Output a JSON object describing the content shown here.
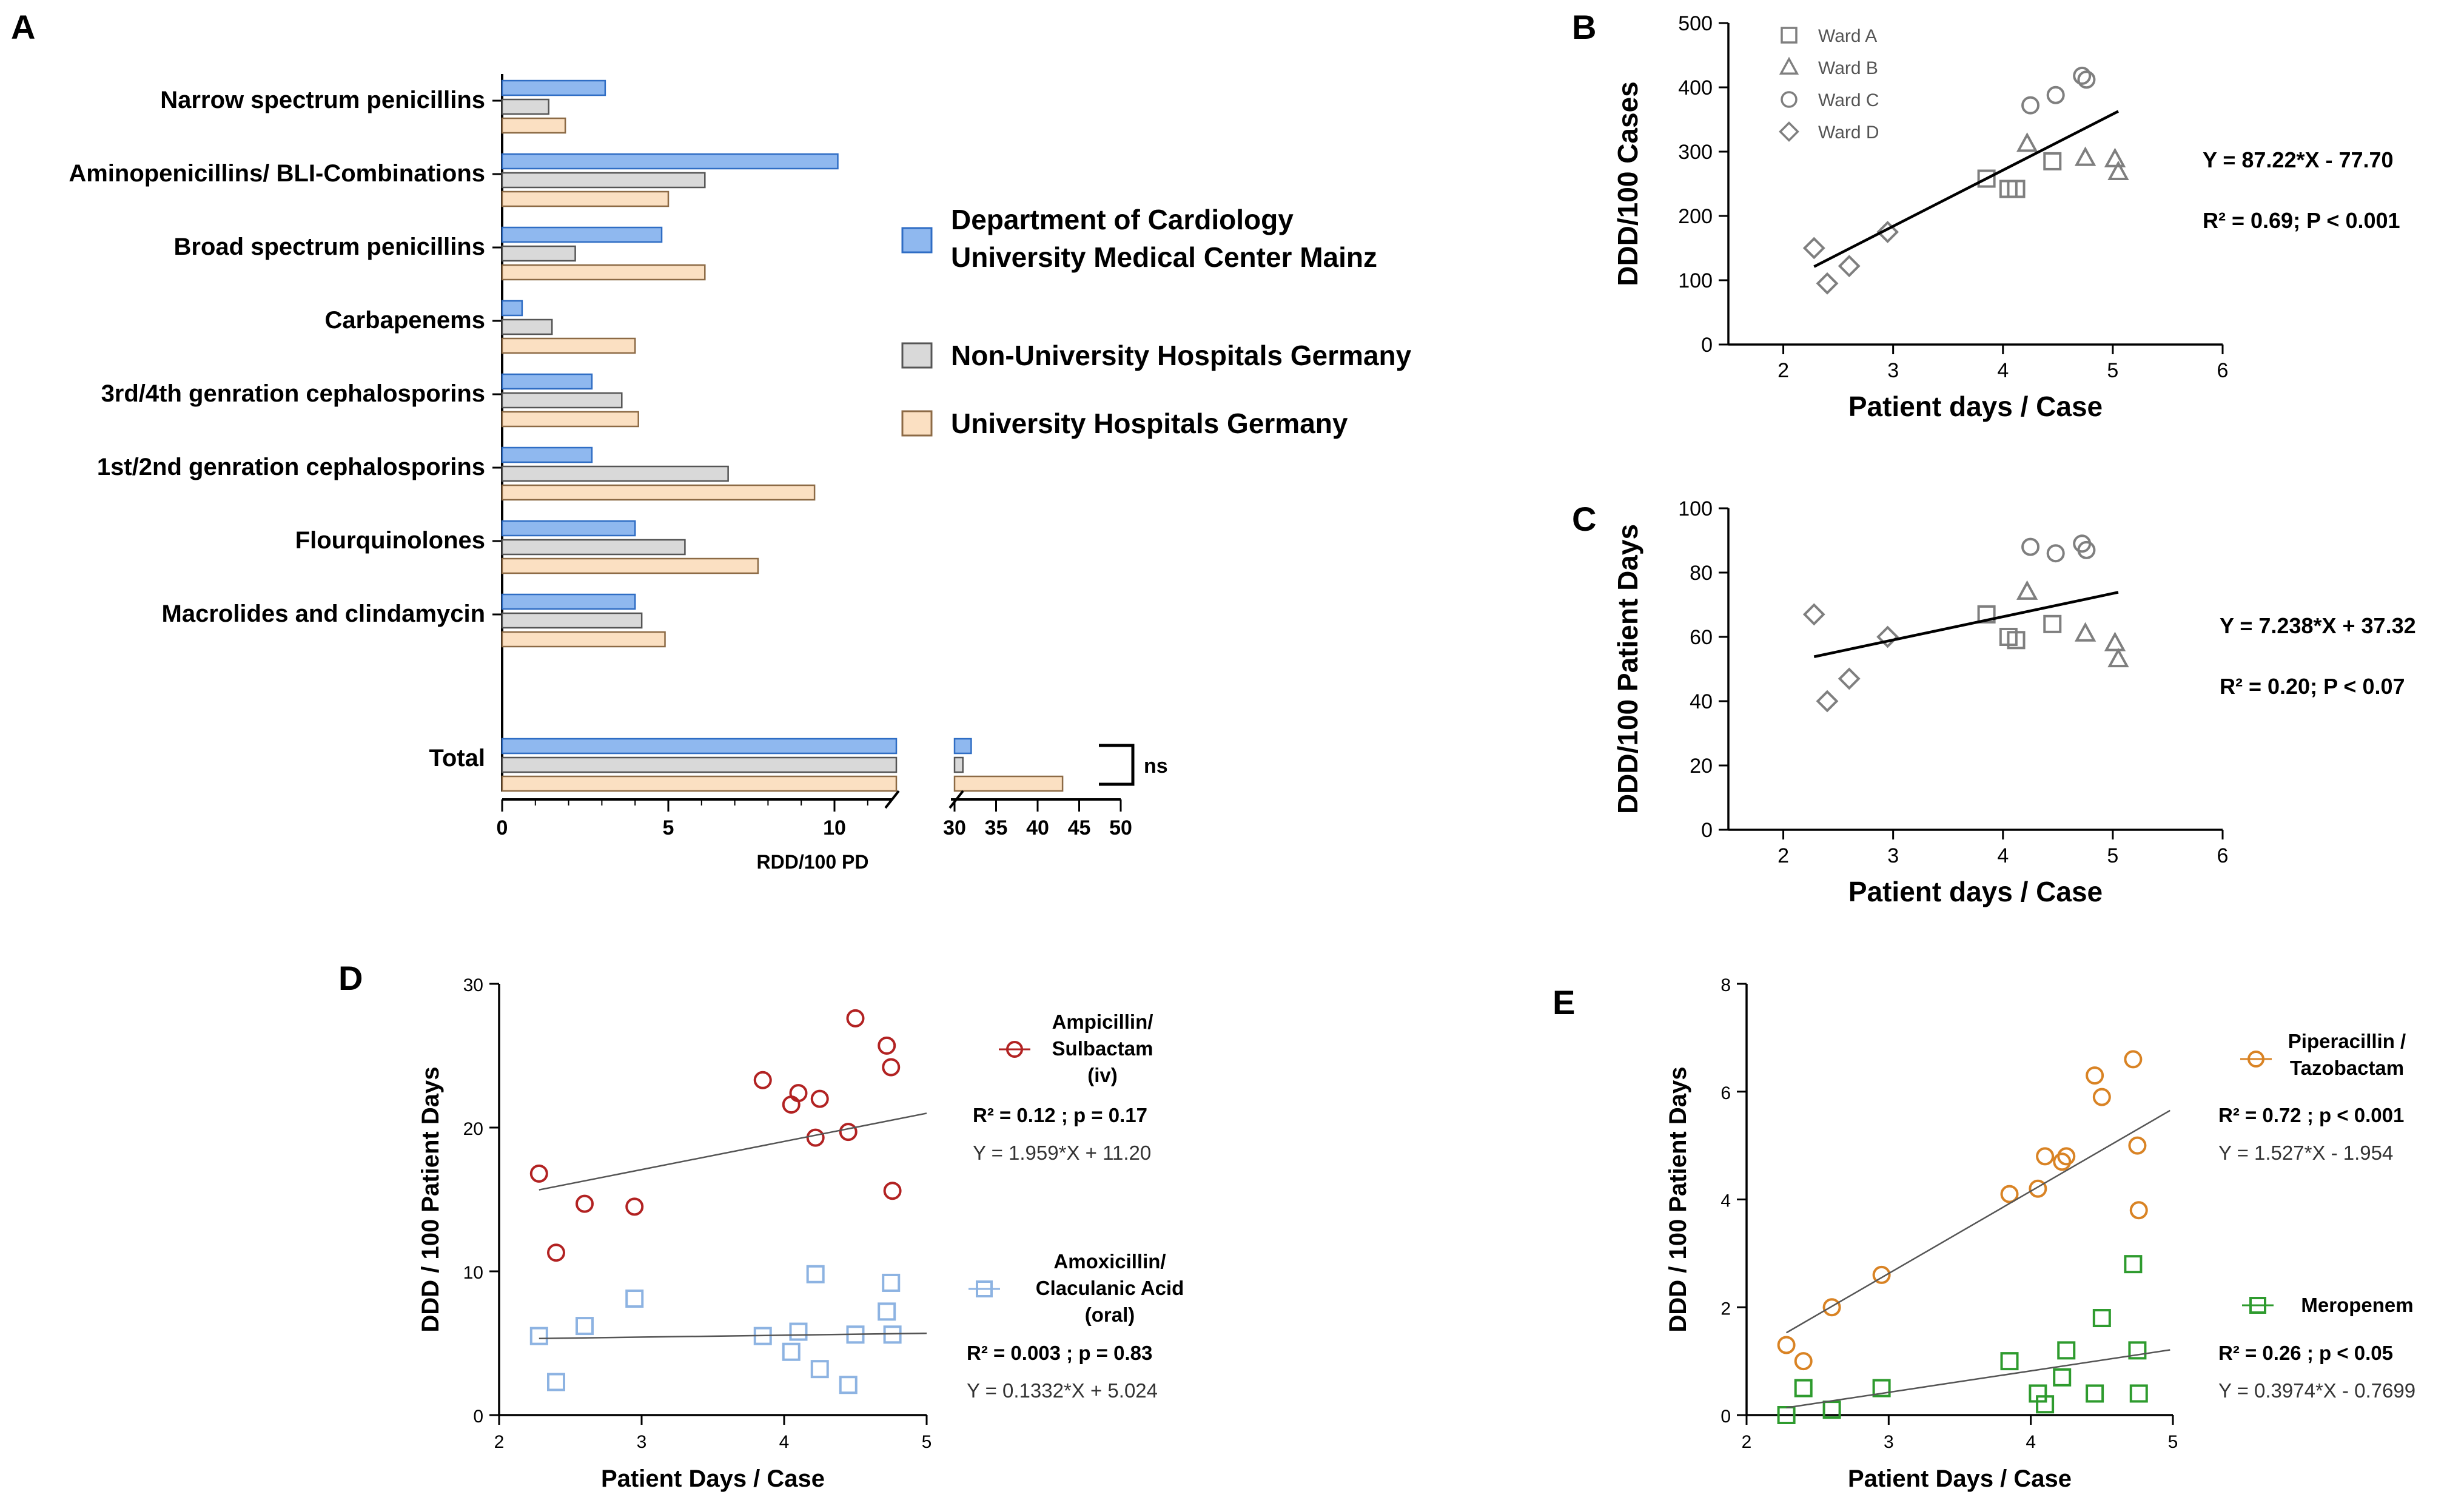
{
  "figure": {
    "panel_labels": [
      "A",
      "B",
      "C",
      "D",
      "E"
    ]
  },
  "colors": {
    "blue": "#8fb8ef",
    "blue_edge": "#2f6dc4",
    "grey": "#d9d9d9",
    "grey_edge": "#555555",
    "peach": "#fbe0c2",
    "peach_edge": "#8c6a45",
    "marker": "#7f7f7f",
    "red": "#b22222",
    "lightblue": "#8db3e2",
    "orange": "#d98324",
    "green": "#2e9b2e"
  },
  "chart_data": [
    {
      "id": "A",
      "type": "bar",
      "orientation": "horizontal",
      "categories": [
        "Narrow spectrum penicillins",
        "Aminopenicillins/ BLI-Combinations",
        "Broad spectrum penicillins",
        "Carbapenems",
        "3rd/4th genration cephalosporins",
        "1st/2nd genration cephalosporins",
        "Flourquinolones",
        "Macrolides and clindamycin"
      ],
      "series": [
        {
          "name": "Department of Cardiology University Medical Center Mainz",
          "legend_lines": [
            "Department of Cardiology",
            "University Medical Center Mainz"
          ],
          "color_key": "blue",
          "values": [
            3.1,
            10.1,
            4.8,
            0.6,
            2.7,
            2.7,
            4.0,
            4.0
          ]
        },
        {
          "name": "Non-University Hospitals Germany",
          "legend_lines": [
            "Non-University Hospitals Germany"
          ],
          "color_key": "grey",
          "values": [
            1.4,
            6.1,
            2.2,
            1.5,
            3.6,
            6.8,
            5.5,
            4.2
          ]
        },
        {
          "name": "University Hospitals Germany",
          "legend_lines": [
            "University Hospitals Germany"
          ],
          "color_key": "peach",
          "values": [
            1.9,
            5.0,
            6.1,
            4.0,
            4.1,
            9.4,
            7.7,
            4.9
          ]
        }
      ],
      "total": {
        "label": "Total",
        "values": [
          32,
          31,
          43
        ],
        "significance": "ns"
      },
      "xlabel": "RDD/100 PD",
      "xlim_left": [
        0,
        12
      ],
      "xticks_left": [
        0,
        5,
        10
      ],
      "xlim_right": [
        30,
        50
      ],
      "xticks_right": [
        30,
        35,
        40,
        45,
        50
      ]
    },
    {
      "id": "B",
      "type": "scatter",
      "xlabel": "Patient days / Case",
      "ylabel": "DDD/100 Cases",
      "xlim": [
        1.5,
        6
      ],
      "xticks": [
        2,
        3,
        4,
        5,
        6
      ],
      "ylim": [
        0,
        500
      ],
      "yticks": [
        0,
        100,
        200,
        300,
        400,
        500
      ],
      "series": [
        {
          "name": "Ward A",
          "marker": "square",
          "points": [
            [
              3.85,
              258
            ],
            [
              4.05,
              242
            ],
            [
              4.12,
              242
            ],
            [
              4.45,
              285
            ]
          ]
        },
        {
          "name": "Ward B",
          "marker": "triangle",
          "points": [
            [
              4.22,
              312
            ],
            [
              4.75,
              290
            ],
            [
              5.02,
              288
            ],
            [
              5.05,
              268
            ]
          ]
        },
        {
          "name": "Ward C",
          "marker": "circle",
          "points": [
            [
              4.25,
              372
            ],
            [
              4.48,
              388
            ],
            [
              4.72,
              418
            ],
            [
              4.76,
              412
            ]
          ]
        },
        {
          "name": "Ward D",
          "marker": "diamond",
          "points": [
            [
              2.28,
              150
            ],
            [
              2.4,
              95
            ],
            [
              2.6,
              122
            ],
            [
              2.95,
              175
            ]
          ]
        }
      ],
      "fit": {
        "slope": 87.22,
        "intercept": -77.7,
        "x_range": [
          2.28,
          5.05
        ]
      },
      "annotations": [
        "Y = 87.22*X - 77.70",
        "R² = 0.69; P < 0.001"
      ]
    },
    {
      "id": "C",
      "type": "scatter",
      "xlabel": "Patient days / Case",
      "ylabel": "DDD/100 Patient Days",
      "xlim": [
        1.5,
        6
      ],
      "xticks": [
        2,
        3,
        4,
        5,
        6
      ],
      "ylim": [
        0,
        100
      ],
      "yticks": [
        0,
        20,
        40,
        60,
        80,
        100
      ],
      "series": [
        {
          "name": "Ward A",
          "marker": "square",
          "points": [
            [
              3.85,
              67
            ],
            [
              4.05,
              60
            ],
            [
              4.12,
              59
            ],
            [
              4.45,
              64
            ]
          ]
        },
        {
          "name": "Ward B",
          "marker": "triangle",
          "points": [
            [
              4.22,
              74
            ],
            [
              4.75,
              61
            ],
            [
              5.02,
              58
            ],
            [
              5.05,
              53
            ]
          ]
        },
        {
          "name": "Ward C",
          "marker": "circle",
          "points": [
            [
              4.25,
              88
            ],
            [
              4.48,
              86
            ],
            [
              4.72,
              89
            ],
            [
              4.76,
              87
            ]
          ]
        },
        {
          "name": "Ward D",
          "marker": "diamond",
          "points": [
            [
              2.28,
              67
            ],
            [
              2.4,
              40
            ],
            [
              2.6,
              47
            ],
            [
              2.95,
              60
            ]
          ]
        }
      ],
      "fit": {
        "slope": 7.238,
        "intercept": 37.32,
        "x_range": [
          2.28,
          5.05
        ]
      },
      "annotations": [
        "Y = 7.238*X + 37.32",
        "R² = 0.20; P < 0.07"
      ]
    },
    {
      "id": "D",
      "type": "scatter",
      "xlabel": "Patient Days / Case",
      "ylabel": "DDD / 100 Patient Days",
      "xlim": [
        2,
        5
      ],
      "xticks": [
        2,
        3,
        4,
        5
      ],
      "ylim": [
        0,
        30
      ],
      "yticks": [
        0,
        10,
        20,
        30
      ],
      "series": [
        {
          "name": "Ampicillin/ Sulbactam (iv)",
          "legend_lines": [
            "Ampicillin/",
            "Sulbactam",
            "(iv)"
          ],
          "marker": "circle",
          "color_key": "red",
          "points": [
            [
              2.28,
              16.8
            ],
            [
              2.4,
              11.3
            ],
            [
              2.6,
              14.7
            ],
            [
              2.95,
              14.5
            ],
            [
              3.85,
              23.3
            ],
            [
              4.05,
              21.6
            ],
            [
              4.1,
              22.4
            ],
            [
              4.22,
              19.3
            ],
            [
              4.25,
              22.0
            ],
            [
              4.45,
              19.7
            ],
            [
              4.5,
              27.6
            ],
            [
              4.72,
              25.7
            ],
            [
              4.75,
              24.2
            ],
            [
              4.76,
              15.6
            ]
          ],
          "fit": {
            "slope": 1.959,
            "intercept": 11.2,
            "x_range": [
              2.28,
              5.0
            ]
          },
          "annotations": [
            "R² = 0.12 ; p = 0.17",
            "Y = 1.959*X + 11.20"
          ]
        },
        {
          "name": "Amoxicillin/ Claculanic Acid (oral)",
          "legend_lines": [
            "Amoxicillin/",
            "Claculanic Acid",
            "(oral)"
          ],
          "marker": "square",
          "color_key": "lightblue",
          "points": [
            [
              2.28,
              5.5
            ],
            [
              2.4,
              2.3
            ],
            [
              2.6,
              6.2
            ],
            [
              2.95,
              8.1
            ],
            [
              3.85,
              5.5
            ],
            [
              4.05,
              4.4
            ],
            [
              4.1,
              5.8
            ],
            [
              4.22,
              9.8
            ],
            [
              4.25,
              3.2
            ],
            [
              4.45,
              2.1
            ],
            [
              4.5,
              5.6
            ],
            [
              4.72,
              7.2
            ],
            [
              4.75,
              9.2
            ],
            [
              4.76,
              5.6
            ]
          ],
          "fit": {
            "slope": 0.1332,
            "intercept": 5.024,
            "x_range": [
              2.28,
              5.0
            ]
          },
          "annotations": [
            "R² = 0.003 ; p = 0.83",
            "Y = 0.1332*X + 5.024"
          ]
        }
      ]
    },
    {
      "id": "E",
      "type": "scatter",
      "xlabel": "Patient Days / Case",
      "ylabel": "DDD / 100 Patient Days",
      "xlim": [
        2,
        5
      ],
      "xticks": [
        2,
        3,
        4,
        5
      ],
      "ylim": [
        0,
        8
      ],
      "yticks": [
        0,
        2,
        4,
        6,
        8
      ],
      "series": [
        {
          "name": "Piperacillin / Tazobactam",
          "legend_lines": [
            "Piperacillin /",
            "Tazobactam"
          ],
          "marker": "circle",
          "color_key": "orange",
          "points": [
            [
              2.28,
              1.3
            ],
            [
              2.4,
              1.0
            ],
            [
              2.6,
              2.0
            ],
            [
              2.95,
              2.6
            ],
            [
              3.85,
              4.1
            ],
            [
              4.05,
              4.2
            ],
            [
              4.1,
              4.8
            ],
            [
              4.22,
              4.7
            ],
            [
              4.25,
              4.8
            ],
            [
              4.45,
              6.3
            ],
            [
              4.5,
              5.9
            ],
            [
              4.72,
              6.6
            ],
            [
              4.75,
              5.0
            ],
            [
              4.76,
              3.8
            ]
          ],
          "fit": {
            "slope": 1.527,
            "intercept": -1.954,
            "x_range": [
              2.28,
              4.98
            ]
          },
          "annotations": [
            "R² = 0.72 ; p < 0.001",
            "Y = 1.527*X - 1.954"
          ]
        },
        {
          "name": "Meropenem",
          "legend_lines": [
            "Meropenem"
          ],
          "marker": "square",
          "color_key": "green",
          "points": [
            [
              2.28,
              0.0
            ],
            [
              2.4,
              0.5
            ],
            [
              2.6,
              0.1
            ],
            [
              2.95,
              0.5
            ],
            [
              3.85,
              1.0
            ],
            [
              4.05,
              0.4
            ],
            [
              4.1,
              0.2
            ],
            [
              4.22,
              0.7
            ],
            [
              4.25,
              1.2
            ],
            [
              4.45,
              0.4
            ],
            [
              4.5,
              1.8
            ],
            [
              4.72,
              2.8
            ],
            [
              4.75,
              1.2
            ],
            [
              4.76,
              0.4
            ]
          ],
          "fit": {
            "slope": 0.3974,
            "intercept": -0.7699,
            "x_range": [
              2.28,
              4.98
            ]
          },
          "annotations": [
            "R² = 0.26 ; p < 0.05",
            "Y = 0.3974*X - 0.7699"
          ]
        }
      ]
    }
  ]
}
